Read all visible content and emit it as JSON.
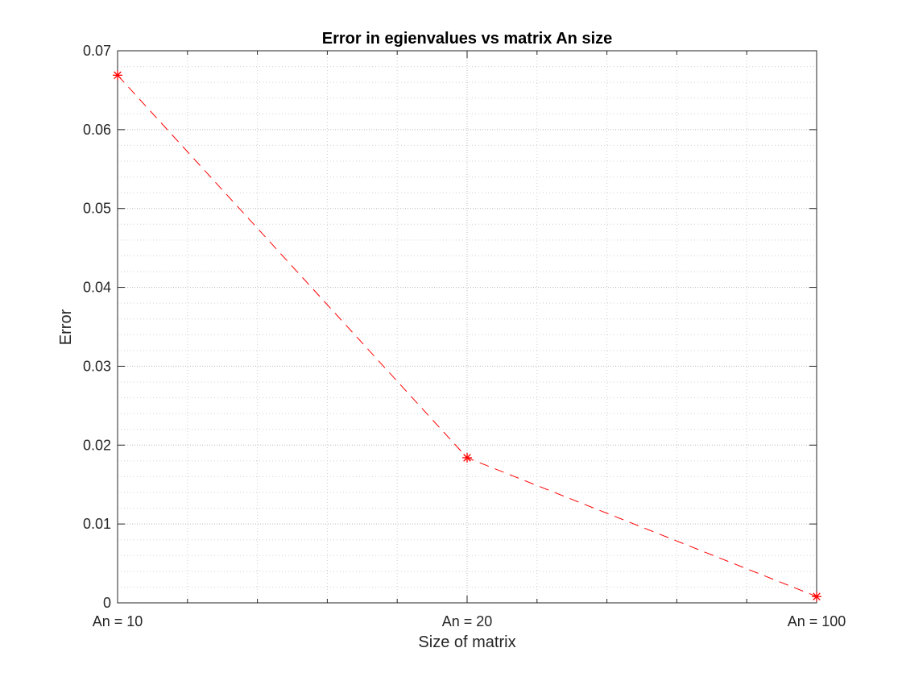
{
  "chart_data": {
    "type": "line",
    "title": "Error in egienvalues vs matrix An size",
    "xlabel": "Size of matrix",
    "ylabel": "Error",
    "categories": [
      "An = 10",
      "An = 20",
      "An = 100"
    ],
    "x": [
      1,
      2,
      3
    ],
    "xlim": [
      1,
      3
    ],
    "xticks_major": [
      1,
      2,
      3
    ],
    "x_minor_step": 0.2,
    "ylim": [
      0,
      0.07
    ],
    "yticks": [
      0,
      0.01,
      0.02,
      0.03,
      0.04,
      0.05,
      0.06,
      0.07
    ],
    "ytick_labels": [
      "0",
      "0.01",
      "0.02",
      "0.03",
      "0.04",
      "0.05",
      "0.06",
      "0.07"
    ],
    "y_minor_step": 0.002,
    "grid": "major and minor, dotted",
    "series": [
      {
        "values": [
          0.0669,
          0.0184,
          0.0008
        ],
        "color": "#ff0000",
        "line_style": "dashed",
        "marker": "asterisk"
      }
    ]
  }
}
